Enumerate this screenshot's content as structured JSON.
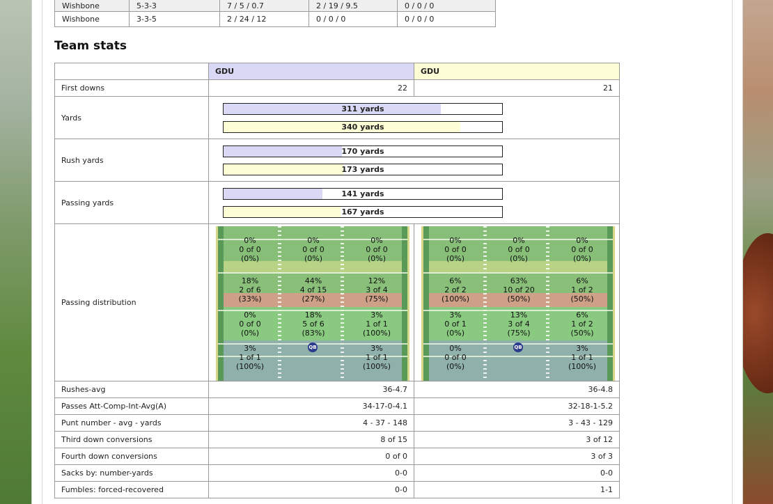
{
  "formations": [
    {
      "name": "Wishbone",
      "scheme": "5-3-3",
      "c1": "7 / 5 / 0.7",
      "c2": "2 / 19 / 9.5",
      "c3": "0 / 0 / 0"
    },
    {
      "name": "Wishbone",
      "scheme": "3-3-5",
      "c1": "2 / 24 / 12",
      "c2": "0 / 0 / 0",
      "c3": "0 / 0 / 0"
    }
  ],
  "team_stats": {
    "title": "Team stats",
    "team1": "GDU",
    "team2": "GDU",
    "team1_color": "#d9d9f5",
    "team2_color": "#fefed6",
    "first_downs": {
      "label": "First downs",
      "t1": "22",
      "t2": "21"
    },
    "yards": {
      "label": "Yards",
      "t1": "311 yards",
      "t2": "340 yards",
      "t1_frac": 0.78,
      "t2_frac": 0.85
    },
    "rush": {
      "label": "Rush yards",
      "t1": "170 yards",
      "t2": "173 yards",
      "t1_frac": 0.425,
      "t2_frac": 0.43
    },
    "pass": {
      "label": "Passing yards",
      "t1": "141 yards",
      "t2": "167 yards",
      "t1_frac": 0.355,
      "t2_frac": 0.42
    },
    "distribution_label": "Passing distribution",
    "dist_t1": [
      [
        "0%",
        "0 of 0",
        "(0%)"
      ],
      [
        "0%",
        "0 of 0",
        "(0%)"
      ],
      [
        "0%",
        "0 of 0",
        "(0%)"
      ],
      [
        "18%",
        "2 of 6",
        "(33%)"
      ],
      [
        "44%",
        "4 of 15",
        "(27%)"
      ],
      [
        "12%",
        "3 of 4",
        "(75%)"
      ],
      [
        "0%",
        "0 of 0",
        "(0%)"
      ],
      [
        "18%",
        "5 of 6",
        "(83%)"
      ],
      [
        "3%",
        "1 of 1",
        "(100%)"
      ],
      [
        "3%",
        "1 of 1",
        "(100%)"
      ],
      [
        "",
        "",
        ""
      ],
      [
        "3%",
        "1 of 1",
        "(100%)"
      ]
    ],
    "dist_t2": [
      [
        "0%",
        "0 of 0",
        "(0%)"
      ],
      [
        "0%",
        "0 of 0",
        "(0%)"
      ],
      [
        "0%",
        "0 of 0",
        "(0%)"
      ],
      [
        "6%",
        "2 of 2",
        "(100%)"
      ],
      [
        "63%",
        "10 of 20",
        "(50%)"
      ],
      [
        "6%",
        "1 of 2",
        "(50%)"
      ],
      [
        "3%",
        "0 of 1",
        "(0%)"
      ],
      [
        "13%",
        "3 of 4",
        "(75%)"
      ],
      [
        "6%",
        "1 of 2",
        "(50%)"
      ],
      [
        "0%",
        "0 of 0",
        "(0%)"
      ],
      [
        "",
        "",
        ""
      ],
      [
        "3%",
        "1 of 1",
        "(100%)"
      ]
    ],
    "qb_label": "QB",
    "rows": [
      {
        "label": "Rushes-avg",
        "t1": "36-4.7",
        "t2": "36-4.8"
      },
      {
        "label": "Passes Att-Comp-Int-Avg(A)",
        "t1": "34-17-0-4.1",
        "t2": "32-18-1-5.2"
      },
      {
        "label": "Punt number - avg - yards",
        "t1": "4 - 37 - 148",
        "t2": "3 - 43 - 129"
      },
      {
        "label": "Third down conversions",
        "t1": "8 of 15",
        "t2": "3 of 12"
      },
      {
        "label": "Fourth down conversions",
        "t1": "0 of 0",
        "t2": "3 of 3"
      },
      {
        "label": "Sacks by: number-yards",
        "t1": "0-0",
        "t2": "0-0"
      },
      {
        "label": "Fumbles: forced-recovered",
        "t1": "0-0",
        "t2": "1-1"
      }
    ]
  }
}
